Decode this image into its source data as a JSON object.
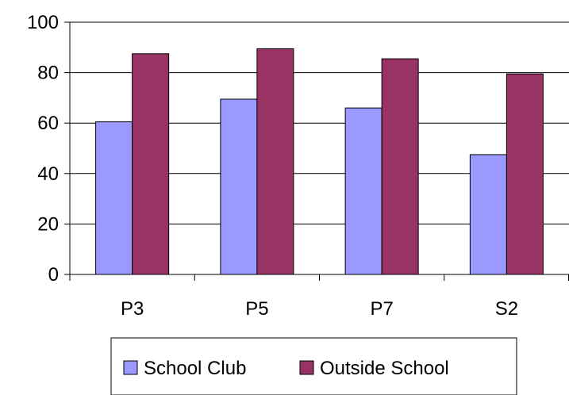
{
  "chart_data": {
    "type": "bar",
    "categories": [
      "P3",
      "P5",
      "P7",
      "S2"
    ],
    "series": [
      {
        "name": "School Club",
        "values": [
          60.5,
          69.5,
          66.0,
          47.5
        ],
        "color": "#9999ff"
      },
      {
        "name": "Outside School",
        "values": [
          87.5,
          89.5,
          85.5,
          79.5
        ],
        "color": "#993366"
      }
    ],
    "ylim": [
      0,
      100
    ],
    "yticks": [
      0,
      20,
      40,
      60,
      80,
      100
    ],
    "grid": true,
    "legend": "bottom"
  }
}
